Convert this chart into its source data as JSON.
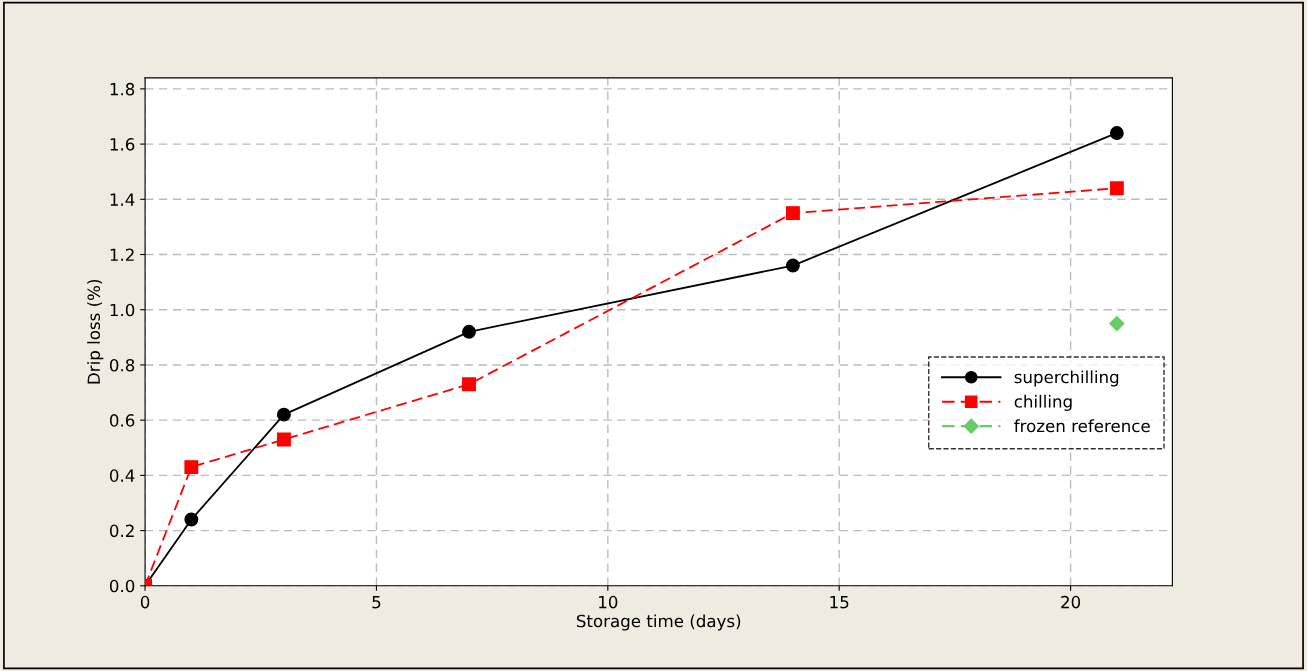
{
  "chart_data": {
    "type": "line",
    "xlabel": "Storage time (days)",
    "ylabel": "Drip loss (%)",
    "xlim": [
      0,
      22.2
    ],
    "xticks": [
      0,
      5,
      10,
      15,
      20
    ],
    "ylim": [
      0,
      1.84
    ],
    "yticks": [
      {
        "value": 0,
        "label": "0.0"
      },
      {
        "value": 0.2,
        "label": "0.2"
      },
      {
        "value": 0.4,
        "label": "0.4"
      },
      {
        "value": 0.6,
        "label": "0.6"
      },
      {
        "value": 0.8,
        "label": "0.8"
      },
      {
        "value": 1.0,
        "label": "1.0"
      },
      {
        "value": 1.2,
        "label": "1.2"
      },
      {
        "value": 1.4,
        "label": "1.4"
      },
      {
        "value": 1.6,
        "label": "1.6"
      },
      {
        "value": 1.8,
        "label": "1.8"
      }
    ],
    "grid": true,
    "legend": "right",
    "series": [
      {
        "name": "superchilling",
        "color": "#000000",
        "marker": "circle",
        "line_style": "solid",
        "x": [
          0,
          1,
          3,
          7,
          14,
          21
        ],
        "values": [
          0,
          0.24,
          0.62,
          0.92,
          1.16,
          1.64
        ]
      },
      {
        "name": "chilling",
        "color": "#ff0000",
        "marker": "square",
        "line_style": "dashed",
        "x": [
          0,
          1,
          3,
          7,
          14,
          21
        ],
        "values": [
          0,
          0.43,
          0.53,
          0.73,
          1.35,
          1.44
        ]
      },
      {
        "name": "frozen reference",
        "color": "#66cc66",
        "marker": "diamond",
        "line_style": "dashed",
        "x": [
          21
        ],
        "values": [
          0.95
        ]
      }
    ]
  }
}
